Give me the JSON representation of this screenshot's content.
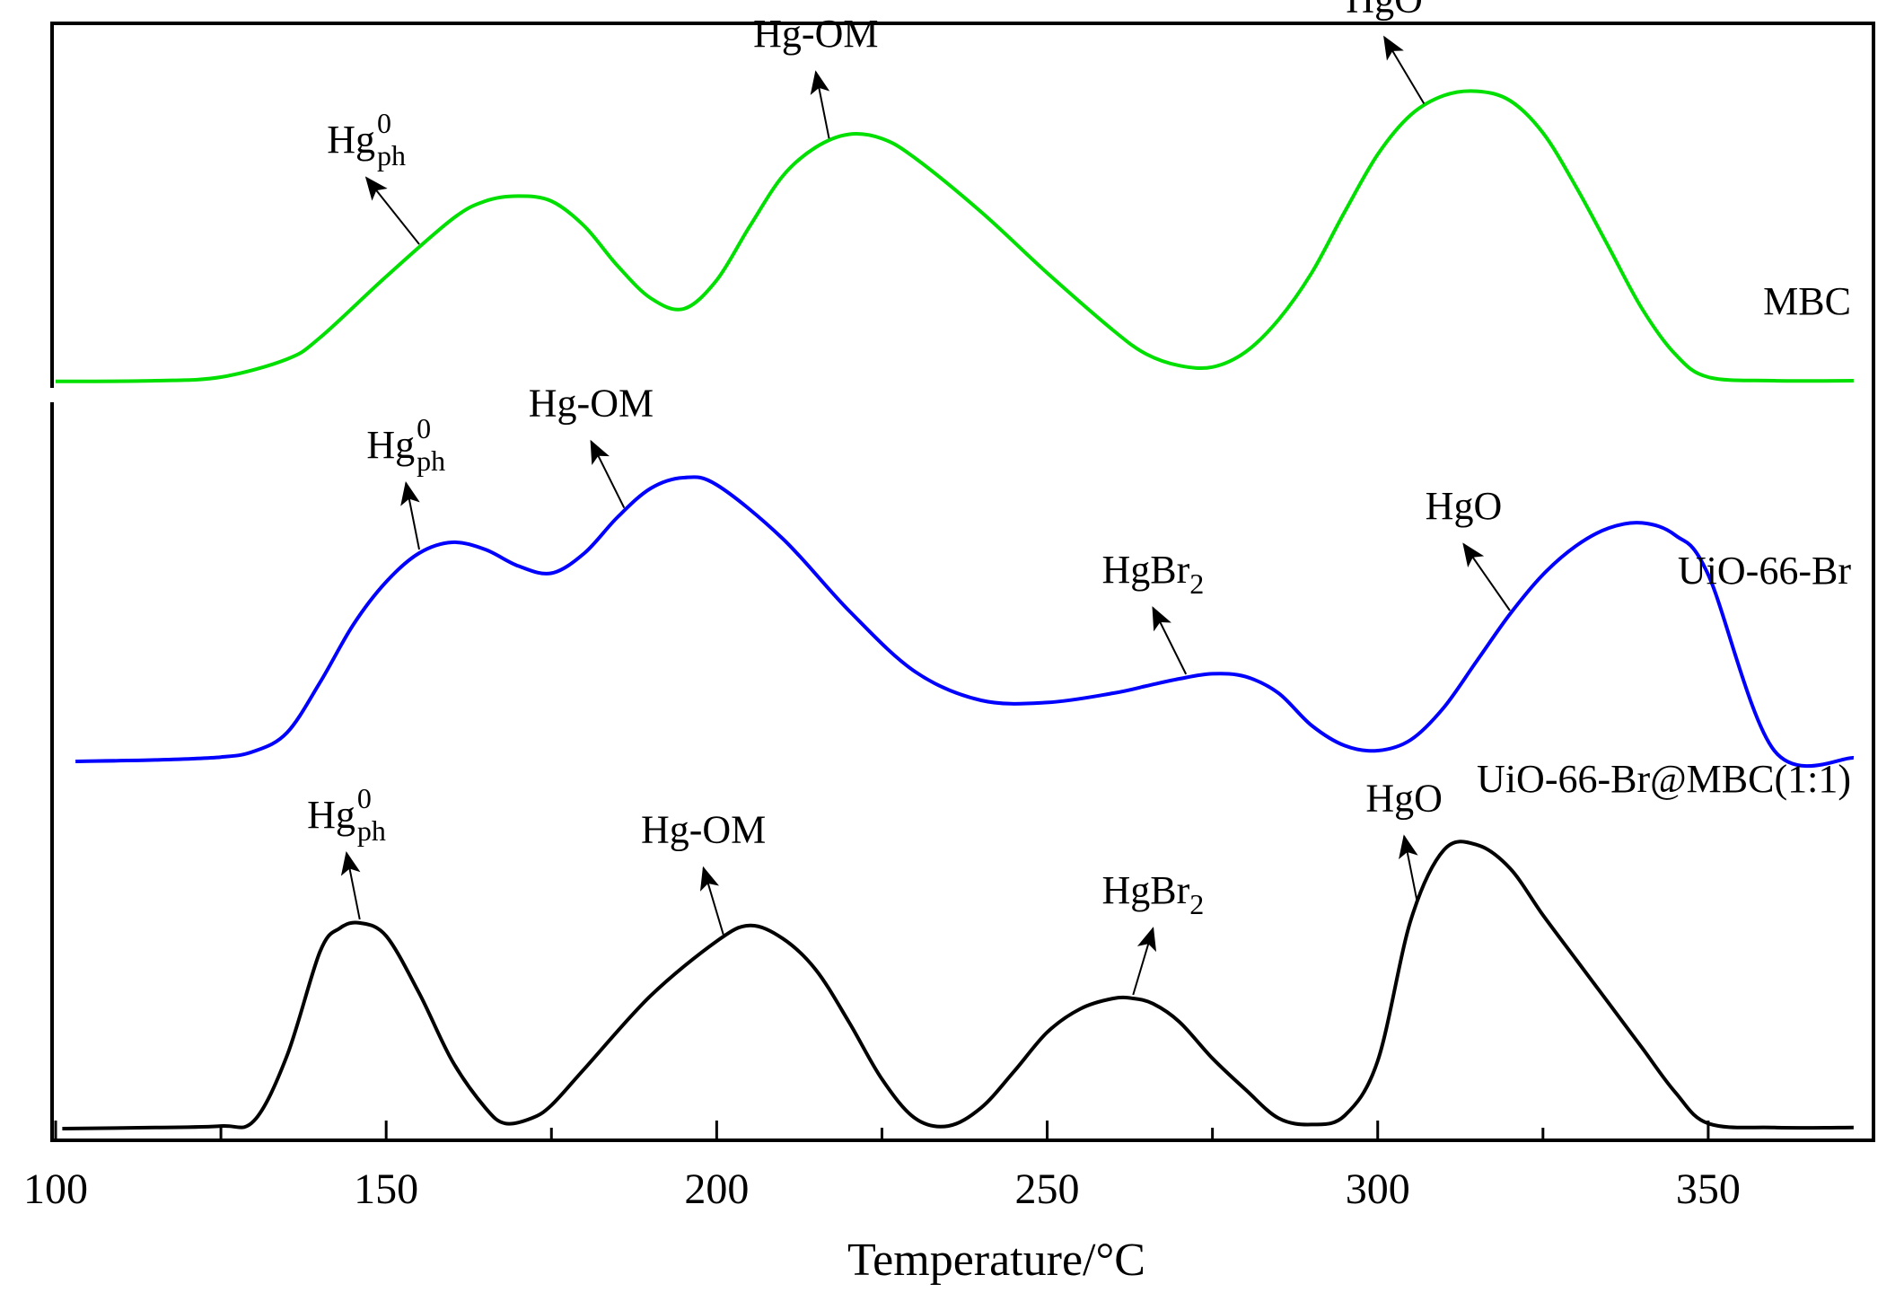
{
  "chart_data": {
    "type": "line",
    "title": "",
    "xlabel": "Temperature/°C",
    "ylabel": "",
    "xlim": [
      100,
      375
    ],
    "x_ticks": [
      100,
      150,
      200,
      250,
      300,
      350
    ],
    "grid": false,
    "legend": "labels placed at right end of each curve",
    "y_units": "relative intensity (offset, unitless)",
    "series": [
      {
        "name": "MBC",
        "color": "#00e000",
        "x": [
          100,
          115,
          125,
          135,
          140,
          150,
          160,
          165,
          170,
          175,
          180,
          185,
          190,
          195,
          200,
          205,
          210,
          215,
          220,
          225,
          230,
          240,
          250,
          260,
          265,
          270,
          275,
          280,
          285,
          290,
          295,
          300,
          305,
          310,
          315,
          320,
          325,
          330,
          335,
          340,
          345,
          350,
          360,
          372
        ],
        "y": [
          0.04,
          0.05,
          0.1,
          0.35,
          0.65,
          1.5,
          2.3,
          2.55,
          2.62,
          2.55,
          2.2,
          1.65,
          1.2,
          1.05,
          1.45,
          2.2,
          2.9,
          3.3,
          3.48,
          3.42,
          3.15,
          2.4,
          1.55,
          0.75,
          0.42,
          0.26,
          0.24,
          0.45,
          0.9,
          1.55,
          2.4,
          3.2,
          3.75,
          4.02,
          4.08,
          3.95,
          3.5,
          2.75,
          1.9,
          1.05,
          0.42,
          0.1,
          0.05,
          0.05
        ]
      },
      {
        "name": "UiO-66-Br",
        "color": "#0000ff",
        "x": [
          103,
          115,
          125,
          130,
          135,
          140,
          145,
          150,
          155,
          160,
          165,
          170,
          175,
          180,
          185,
          190,
          195,
          200,
          210,
          220,
          230,
          240,
          250,
          260,
          265,
          270,
          275,
          280,
          285,
          290,
          295,
          300,
          305,
          310,
          315,
          320,
          325,
          330,
          335,
          340,
          345,
          350,
          360,
          372
        ],
        "y": [
          0.0,
          0.02,
          0.06,
          0.14,
          0.4,
          1.1,
          1.9,
          2.5,
          2.9,
          3.05,
          2.95,
          2.72,
          2.62,
          2.9,
          3.4,
          3.8,
          3.95,
          3.85,
          3.1,
          2.1,
          1.25,
          0.85,
          0.82,
          0.95,
          1.05,
          1.15,
          1.22,
          1.18,
          0.95,
          0.5,
          0.22,
          0.15,
          0.3,
          0.75,
          1.4,
          2.05,
          2.6,
          3.0,
          3.25,
          3.32,
          3.15,
          2.6,
          0.15,
          0.05
        ]
      },
      {
        "name": "UiO-66-Br@MBC(1:1)",
        "color": "#000000",
        "x": [
          101,
          115,
          125,
          130,
          135,
          140,
          143,
          146,
          150,
          155,
          160,
          165,
          168,
          172,
          175,
          180,
          190,
          200,
          205,
          210,
          215,
          220,
          225,
          230,
          235,
          240,
          245,
          250,
          255,
          260,
          263,
          266,
          270,
          275,
          280,
          285,
          290,
          295,
          300,
          305,
          310,
          315,
          320,
          325,
          330,
          335,
          340,
          345,
          350,
          360,
          372
        ],
        "y": [
          0.0,
          0.02,
          0.05,
          0.15,
          1.4,
          3.4,
          3.85,
          3.95,
          3.7,
          2.6,
          1.3,
          0.4,
          0.1,
          0.2,
          0.45,
          1.15,
          2.55,
          3.6,
          3.9,
          3.65,
          3.05,
          2.05,
          0.95,
          0.2,
          0.05,
          0.4,
          1.1,
          1.85,
          2.3,
          2.5,
          2.5,
          2.4,
          2.05,
          1.35,
          0.75,
          0.2,
          0.08,
          0.25,
          1.3,
          4.0,
          5.35,
          5.45,
          5.0,
          4.1,
          3.25,
          2.4,
          1.55,
          0.7,
          0.1,
          0.02,
          0.02
        ]
      }
    ],
    "annotations": [
      {
        "series": 0,
        "base": "Hg",
        "sup": "0",
        "sub": "ph",
        "text_x": 155,
        "from_x": 155,
        "to_x": 147
      },
      {
        "series": 0,
        "base": "Hg-OM",
        "sup": "",
        "sub": "",
        "text_x": 217,
        "from_x": 217,
        "to_x": 215
      },
      {
        "series": 0,
        "base": "HgO",
        "sup": "",
        "sub": "",
        "text_x": 307,
        "from_x": 307,
        "to_x": 301
      },
      {
        "series": 1,
        "base": "Hg",
        "sup": "0",
        "sub": "ph",
        "text_x": 155,
        "from_x": 155,
        "to_x": 153
      },
      {
        "series": 1,
        "base": "Hg-OM",
        "sup": "",
        "sub": "",
        "text_x": 186,
        "from_x": 186,
        "to_x": 181
      },
      {
        "series": 1,
        "base": "HgBr",
        "sup": "",
        "sub": "2",
        "text_x": 271,
        "from_x": 271,
        "to_x": 266
      },
      {
        "series": 1,
        "base": "HgO",
        "sup": "",
        "sub": "",
        "text_x": 320,
        "from_x": 320,
        "to_x": 313
      },
      {
        "series": 2,
        "base": "Hg",
        "sup": "0",
        "sub": "ph",
        "text_x": 146,
        "from_x": 146,
        "to_x": 144
      },
      {
        "series": 2,
        "base": "Hg-OM",
        "sup": "",
        "sub": "",
        "text_x": 201,
        "from_x": 201,
        "to_x": 198
      },
      {
        "series": 2,
        "base": "HgBr",
        "sup": "",
        "sub": "2",
        "text_x": 263,
        "from_x": 263,
        "to_x": 266
      },
      {
        "series": 2,
        "base": "HgO",
        "sup": "",
        "sub": "",
        "text_x": 306,
        "from_x": 306,
        "to_x": 304
      }
    ]
  }
}
